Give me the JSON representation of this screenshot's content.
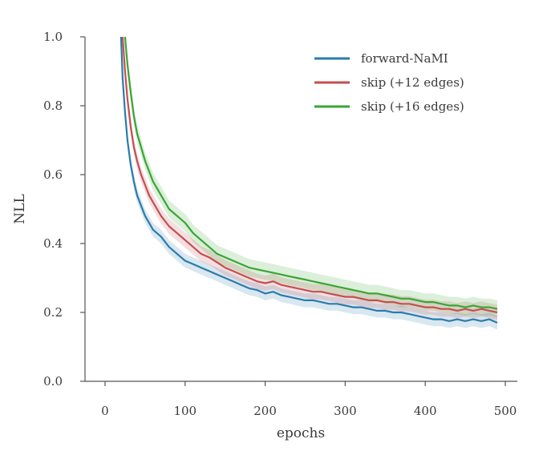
{
  "chart_data": {
    "type": "line",
    "title": "",
    "xlabel": "epochs",
    "ylabel": "NLL",
    "xlim": [
      -25,
      515
    ],
    "ylim": [
      0,
      1.0
    ],
    "xticks": [
      0,
      100,
      200,
      300,
      400,
      500
    ],
    "yticks": [
      0.0,
      0.2,
      0.4,
      0.6,
      0.8,
      1.0
    ],
    "xtick_labels": [
      "0",
      "100",
      "200",
      "300",
      "400",
      "500"
    ],
    "ytick_labels": [
      "0.0",
      "0.2",
      "0.4",
      "0.6",
      "0.8",
      "1.0"
    ],
    "grid": false,
    "legend_position": "top-right",
    "series": [
      {
        "name": "forward-NaMI",
        "color": "#2b7bab",
        "band": 0.02,
        "x": [
          20,
          22,
          25,
          28,
          32,
          36,
          40,
          45,
          50,
          55,
          60,
          65,
          70,
          80,
          90,
          100,
          110,
          120,
          130,
          140,
          150,
          160,
          170,
          180,
          190,
          200,
          210,
          220,
          230,
          240,
          250,
          260,
          270,
          280,
          290,
          300,
          310,
          320,
          330,
          340,
          350,
          360,
          370,
          380,
          390,
          400,
          410,
          420,
          430,
          440,
          450,
          460,
          470,
          480,
          490
        ],
        "y": [
          1.0,
          0.88,
          0.78,
          0.7,
          0.63,
          0.58,
          0.54,
          0.51,
          0.48,
          0.46,
          0.44,
          0.43,
          0.42,
          0.39,
          0.37,
          0.35,
          0.34,
          0.33,
          0.32,
          0.31,
          0.3,
          0.29,
          0.28,
          0.27,
          0.265,
          0.255,
          0.26,
          0.25,
          0.245,
          0.24,
          0.235,
          0.235,
          0.23,
          0.225,
          0.225,
          0.22,
          0.215,
          0.215,
          0.21,
          0.205,
          0.205,
          0.2,
          0.2,
          0.195,
          0.19,
          0.185,
          0.18,
          0.18,
          0.175,
          0.18,
          0.175,
          0.18,
          0.175,
          0.18,
          0.17
        ]
      },
      {
        "name": "skip (+12 edges)",
        "color": "#c44e52",
        "band": 0.022,
        "x": [
          22,
          25,
          28,
          32,
          36,
          40,
          45,
          50,
          55,
          60,
          65,
          70,
          80,
          90,
          100,
          110,
          120,
          130,
          140,
          150,
          160,
          170,
          180,
          190,
          200,
          210,
          220,
          230,
          240,
          250,
          260,
          270,
          280,
          290,
          300,
          310,
          320,
          330,
          340,
          350,
          360,
          370,
          380,
          390,
          400,
          410,
          420,
          430,
          440,
          450,
          460,
          470,
          480,
          490
        ],
        "y": [
          1.0,
          0.9,
          0.82,
          0.74,
          0.68,
          0.64,
          0.6,
          0.57,
          0.54,
          0.52,
          0.5,
          0.48,
          0.45,
          0.43,
          0.41,
          0.39,
          0.37,
          0.36,
          0.345,
          0.33,
          0.32,
          0.31,
          0.3,
          0.29,
          0.285,
          0.29,
          0.28,
          0.275,
          0.27,
          0.265,
          0.26,
          0.26,
          0.255,
          0.25,
          0.245,
          0.245,
          0.24,
          0.235,
          0.235,
          0.23,
          0.23,
          0.225,
          0.225,
          0.22,
          0.215,
          0.215,
          0.21,
          0.21,
          0.205,
          0.21,
          0.205,
          0.21,
          0.205,
          0.2
        ]
      },
      {
        "name": "skip (+16 edges)",
        "color": "#3aa534",
        "band": 0.025,
        "x": [
          25,
          28,
          32,
          36,
          40,
          45,
          50,
          55,
          60,
          65,
          70,
          80,
          90,
          100,
          110,
          120,
          130,
          140,
          150,
          160,
          170,
          180,
          190,
          200,
          210,
          220,
          230,
          240,
          250,
          260,
          270,
          280,
          290,
          300,
          310,
          320,
          330,
          340,
          350,
          360,
          370,
          380,
          390,
          400,
          410,
          420,
          430,
          440,
          450,
          460,
          470,
          480,
          490
        ],
        "y": [
          1.0,
          0.92,
          0.84,
          0.77,
          0.72,
          0.68,
          0.64,
          0.61,
          0.58,
          0.56,
          0.54,
          0.5,
          0.48,
          0.46,
          0.43,
          0.41,
          0.39,
          0.37,
          0.36,
          0.35,
          0.34,
          0.33,
          0.325,
          0.32,
          0.315,
          0.31,
          0.305,
          0.3,
          0.295,
          0.29,
          0.285,
          0.28,
          0.275,
          0.27,
          0.265,
          0.26,
          0.255,
          0.255,
          0.25,
          0.245,
          0.24,
          0.24,
          0.235,
          0.23,
          0.23,
          0.225,
          0.22,
          0.22,
          0.215,
          0.22,
          0.215,
          0.215,
          0.21
        ]
      }
    ]
  }
}
